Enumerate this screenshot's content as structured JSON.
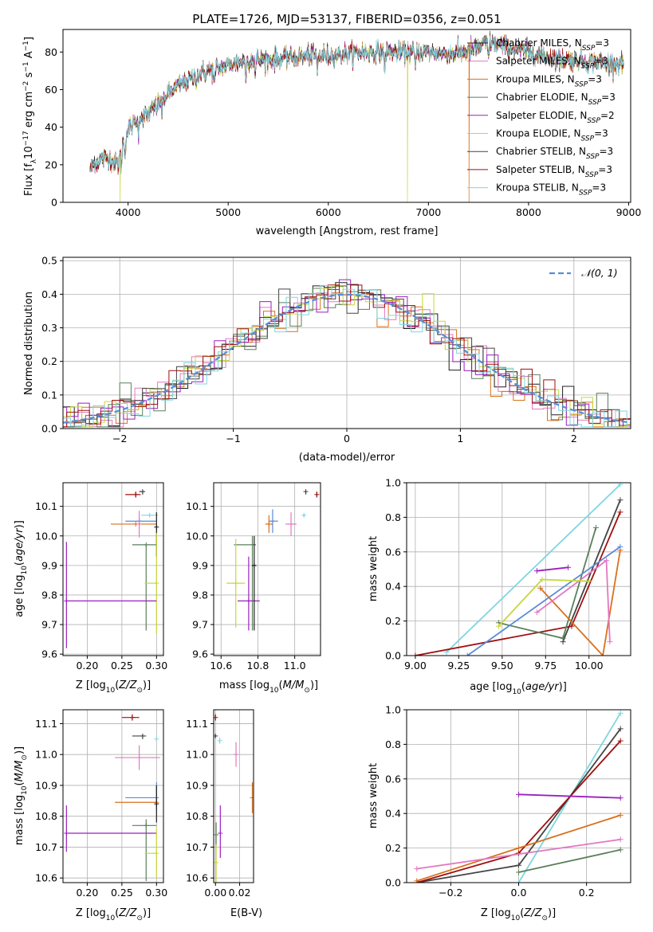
{
  "title": "PLATE=1726, MJD=53137, FIBERID=0356, z=0.051",
  "colors": {
    "chabrier_miles": "#1f1f1f",
    "salpeter_miles": "#e377c2",
    "kroupa_miles": "#d9701c",
    "chabrier_elodie": "#5a7f5a",
    "salpeter_elodie": "#9b1fbf",
    "kroupa_elodie": "#c8d63a",
    "chabrier_stelib": "#444444",
    "salpeter_stelib": "#a00f0f",
    "kroupa_stelib": "#7fd6e0",
    "blue_extra": "#5b8bd6",
    "grid": "#b0b0b0"
  },
  "chart_data": [
    {
      "id": "spectrum",
      "type": "line",
      "xlabel": "wavelength [Angstrom, rest frame]",
      "ylabel": "Flux [f_λ 10^-17 erg cm^-2 s^-1 A^-1]",
      "xlim": [
        3350,
        9020
      ],
      "ylim": [
        0,
        92
      ],
      "xticks": [
        4000,
        5000,
        6000,
        7000,
        8000,
        9000
      ],
      "yticks": [
        0,
        20,
        40,
        60,
        80
      ],
      "grid": false,
      "legend_position": "right",
      "series": [
        {
          "name": "Chabrier MILES, N_SSP=3",
          "color_key": "chabrier_miles"
        },
        {
          "name": "Salpeter MILES, N_SSP=3",
          "color_key": "salpeter_miles"
        },
        {
          "name": "Kroupa MILES, N_SSP=3",
          "color_key": "kroupa_miles"
        },
        {
          "name": "Chabrier ELODIE, N_SSP=3",
          "color_key": "chabrier_elodie"
        },
        {
          "name": "Salpeter ELODIE, N_SSP=2",
          "color_key": "salpeter_elodie"
        },
        {
          "name": "Kroupa ELODIE, N_SSP=3",
          "color_key": "kroupa_elodie"
        },
        {
          "name": "Chabrier STELIB, N_SSP=3",
          "color_key": "chabrier_stelib"
        },
        {
          "name": "Salpeter STELIB, N_SSP=3",
          "color_key": "salpeter_stelib"
        },
        {
          "name": "Kroupa STELIB, N_SSP=3",
          "color_key": "kroupa_stelib"
        }
      ],
      "continuum": {
        "x": [
          3620,
          3700,
          3800,
          3900,
          3950,
          4000,
          4100,
          4200,
          4300,
          4400,
          4500,
          4600,
          4800,
          5000,
          5200,
          5400,
          5600,
          5800,
          6000,
          6200,
          6400,
          6600,
          6800,
          7000,
          7200,
          7400,
          7600,
          7700,
          7800,
          8000,
          8200,
          8400,
          8600,
          8800,
          8950
        ],
        "y": [
          18,
          22,
          24,
          20,
          32,
          38,
          45,
          47,
          52,
          58,
          62,
          65,
          70,
          73,
          76,
          76,
          77,
          78,
          78,
          79,
          80,
          80,
          80,
          80,
          79,
          80,
          85,
          84,
          82,
          80,
          77,
          76,
          75,
          74,
          74
        ]
      },
      "drops": [
        {
          "x": 3920,
          "color_key": "kroupa_elodie"
        },
        {
          "x": 6790,
          "color_key": "kroupa_elodie"
        },
        {
          "x": 7405,
          "color_key": "kroupa_miles"
        }
      ]
    },
    {
      "id": "residuals",
      "type": "histogram",
      "xlabel": "(data-model)/error",
      "ylabel": "Normed distribution",
      "xlim": [
        -2.5,
        2.5
      ],
      "ylim": [
        0,
        0.51
      ],
      "xticks": [
        -2,
        -1,
        0,
        1,
        2
      ],
      "yticks": [
        0.0,
        0.1,
        0.2,
        0.3,
        0.4,
        0.5
      ],
      "grid": true,
      "legend_position": "top-right",
      "bin_width": 0.1,
      "reference": {
        "name": "N(0,1)",
        "color_key": "blue_extra"
      }
    },
    {
      "id": "age_vs_z",
      "type": "errorbar",
      "xlabel": "Z [log10(Z/Z⊙)]",
      "ylabel": "age [log10(age/yr)]",
      "xlim": [
        0.165,
        0.31
      ],
      "ylim": [
        9.595,
        10.18
      ],
      "xticks": [
        0.2,
        0.25,
        0.3
      ],
      "yticks": [
        9.6,
        9.7,
        9.8,
        9.9,
        10.0,
        10.1
      ],
      "grid": true,
      "points": [
        {
          "x": 0.27,
          "xerr": [
            0.015,
            0.007
          ],
          "y": 10.14,
          "yerr": [
            0.01,
            0.01
          ],
          "color_key": "salpeter_stelib"
        },
        {
          "x": 0.28,
          "xerr": [
            0.005,
            0.003
          ],
          "y": 10.15,
          "yerr": [
            0.01,
            0.005
          ],
          "color_key": "chabrier_stelib"
        },
        {
          "x": 0.29,
          "xerr": [
            0.012,
            0.012
          ],
          "y": 10.07,
          "yerr": [
            0.0,
            0.0
          ],
          "color_key": "kroupa_stelib"
        },
        {
          "x": 0.27,
          "xerr": [
            0.036,
            0.03
          ],
          "y": 10.04,
          "yerr": [
            0.0,
            0.0
          ],
          "color_key": "kroupa_miles"
        },
        {
          "x": 0.275,
          "xerr": [
            0.02,
            0.025
          ],
          "y": 10.05,
          "yerr": [
            0.01,
            0.01
          ],
          "color_key": "blue_extra"
        },
        {
          "x": 0.275,
          "xerr": [
            0.0,
            0.0
          ],
          "y": 10.04,
          "yerr": [
            0.045,
            0.045
          ],
          "color_key": "salpeter_miles"
        },
        {
          "x": 0.3,
          "xerr": [
            0.0,
            0.0
          ],
          "y": 10.03,
          "yerr": [
            0.1,
            0.05
          ],
          "color_key": "chabrier_miles"
        },
        {
          "x": 0.285,
          "xerr": [
            0.02,
            0.015
          ],
          "y": 9.97,
          "yerr": [
            0.29,
            0.0
          ],
          "color_key": "chabrier_elodie"
        },
        {
          "x": 0.3,
          "xerr": [
            0.017,
            0.0
          ],
          "y": 9.84,
          "yerr": [
            0.17,
            0.17
          ],
          "color_key": "kroupa_elodie"
        },
        {
          "x": 0.17,
          "xerr": [
            0.0,
            0.13
          ],
          "y": 9.78,
          "yerr": [
            0.16,
            0.2
          ],
          "color_key": "salpeter_elodie"
        }
      ]
    },
    {
      "id": "age_vs_mass",
      "type": "errorbar",
      "xlabel": "mass [log10(M/M⊙)]",
      "ylabel": "",
      "xlim": [
        10.56,
        11.14
      ],
      "ylim": [
        9.595,
        10.18
      ],
      "xticks": [
        10.6,
        10.8,
        11.0
      ],
      "yticks": [
        9.6,
        9.7,
        9.8,
        9.9,
        10.0,
        10.1
      ],
      "grid": true,
      "points": [
        {
          "x": 11.05,
          "xerr": [
            0.005,
            0.005
          ],
          "y": 10.07,
          "yerr": [
            0.005,
            0.005
          ],
          "color_key": "kroupa_stelib"
        },
        {
          "x": 11.06,
          "xerr": [
            0.005,
            0.005
          ],
          "y": 10.15,
          "yerr": [
            0.01,
            0.005
          ],
          "color_key": "chabrier_stelib"
        },
        {
          "x": 11.12,
          "xerr": [
            0.005,
            0.005
          ],
          "y": 10.14,
          "yerr": [
            0.01,
            0.01
          ],
          "color_key": "salpeter_stelib"
        },
        {
          "x": 10.88,
          "xerr": [
            0.02,
            0.03
          ],
          "y": 10.05,
          "yerr": [
            0.04,
            0.04
          ],
          "color_key": "blue_extra"
        },
        {
          "x": 10.86,
          "xerr": [
            0.02,
            0.02
          ],
          "y": 10.04,
          "yerr": [
            0.03,
            0.03
          ],
          "color_key": "kroupa_miles"
        },
        {
          "x": 10.98,
          "xerr": [
            0.03,
            0.03
          ],
          "y": 10.04,
          "yerr": [
            0.04,
            0.04
          ],
          "color_key": "salpeter_miles"
        },
        {
          "x": 10.77,
          "xerr": [
            0.1,
            0.02
          ],
          "y": 9.97,
          "yerr": [
            0.29,
            0.03
          ],
          "color_key": "chabrier_elodie"
        },
        {
          "x": 10.68,
          "xerr": [
            0.05,
            0.05
          ],
          "y": 9.84,
          "yerr": [
            0.15,
            0.15
          ],
          "color_key": "kroupa_elodie"
        },
        {
          "x": 10.75,
          "xerr": [
            0.06,
            0.06
          ],
          "y": 9.78,
          "yerr": [
            0.1,
            0.15
          ],
          "color_key": "salpeter_elodie"
        },
        {
          "x": 10.78,
          "xerr": [
            0.01,
            0.01
          ],
          "y": 9.9,
          "yerr": [
            0.22,
            0.1
          ],
          "color_key": "chabrier_miles"
        }
      ]
    },
    {
      "id": "weight_vs_age",
      "type": "line",
      "xlabel": "age [log10(age/yr)]",
      "ylabel": "mass weight",
      "xlim": [
        8.95,
        10.24
      ],
      "ylim": [
        0,
        1.0
      ],
      "xticks": [
        9.0,
        9.25,
        9.5,
        9.75,
        10.0
      ],
      "yticks": [
        0.0,
        0.2,
        0.4,
        0.6,
        0.8,
        1.0
      ],
      "grid": true,
      "series": [
        {
          "color_key": "kroupa_stelib",
          "x": [
            9.18,
            10.18
          ],
          "y": [
            0.02,
            0.99
          ]
        },
        {
          "color_key": "chabrier_stelib",
          "x": [
            9.85,
            10.18
          ],
          "y": [
            0.08,
            0.9
          ]
        },
        {
          "color_key": "salpeter_stelib",
          "x": [
            9.0,
            9.9,
            10.18
          ],
          "y": [
            0.0,
            0.17,
            0.83
          ]
        },
        {
          "color_key": "chabrier_elodie",
          "x": [
            9.48,
            9.85,
            10.04
          ],
          "y": [
            0.19,
            0.1,
            0.74
          ]
        },
        {
          "color_key": "kroupa_miles",
          "x": [
            9.72,
            10.08,
            10.18
          ],
          "y": [
            0.39,
            0.0,
            0.61
          ]
        },
        {
          "color_key": "blue_extra",
          "x": [
            9.3,
            10.18
          ],
          "y": [
            0.0,
            0.63
          ]
        },
        {
          "color_key": "salpeter_miles",
          "x": [
            9.7,
            10.1,
            10.12
          ],
          "y": [
            0.25,
            0.55,
            0.08
          ]
        },
        {
          "color_key": "salpeter_elodie",
          "x": [
            9.7,
            9.88
          ],
          "y": [
            0.49,
            0.51
          ]
        },
        {
          "color_key": "kroupa_elodie",
          "x": [
            9.48,
            9.73,
            10.0
          ],
          "y": [
            0.17,
            0.44,
            0.43
          ]
        }
      ]
    },
    {
      "id": "mass_vs_z",
      "type": "errorbar",
      "xlabel": "Z [log10(Z/Z⊙)]",
      "ylabel": "mass [log10(M/M⊙)]",
      "xlim": [
        0.165,
        0.31
      ],
      "ylim": [
        10.585,
        11.145
      ],
      "xticks": [
        0.2,
        0.25,
        0.3
      ],
      "yticks": [
        10.6,
        10.7,
        10.8,
        10.9,
        11.0,
        11.1
      ],
      "grid": true,
      "points": [
        {
          "x": 0.265,
          "xerr": [
            0.015,
            0.01
          ],
          "y": 11.12,
          "yerr": [
            0.01,
            0.01
          ],
          "color_key": "salpeter_stelib"
        },
        {
          "x": 0.28,
          "xerr": [
            0.015,
            0.005
          ],
          "y": 11.06,
          "yerr": [
            0.01,
            0.005
          ],
          "color_key": "chabrier_stelib"
        },
        {
          "x": 0.3,
          "xerr": [
            0.0,
            0.0
          ],
          "y": 11.05,
          "yerr": [
            0.0,
            0.0
          ],
          "color_key": "kroupa_stelib"
        },
        {
          "x": 0.275,
          "xerr": [
            0.035,
            0.03
          ],
          "y": 10.99,
          "yerr": [
            0.04,
            0.04
          ],
          "color_key": "salpeter_miles"
        },
        {
          "x": 0.3,
          "xerr": [
            0.045,
            0.0
          ],
          "y": 10.86,
          "yerr": [
            0.04,
            0.05
          ],
          "color_key": "blue_extra"
        },
        {
          "x": 0.3,
          "xerr": [
            0.06,
            0.0
          ],
          "y": 10.845,
          "yerr": [
            0.015,
            0.015
          ],
          "color_key": "kroupa_miles"
        },
        {
          "x": 0.3,
          "xerr": [
            0.0,
            0.0
          ],
          "y": 10.84,
          "yerr": [
            0.06,
            0.06
          ],
          "color_key": "chabrier_miles"
        },
        {
          "x": 0.285,
          "xerr": [
            0.02,
            0.015
          ],
          "y": 10.77,
          "yerr": [
            0.18,
            0.02
          ],
          "color_key": "chabrier_elodie"
        },
        {
          "x": 0.17,
          "xerr": [
            0.0,
            0.13
          ],
          "y": 10.745,
          "yerr": [
            0.06,
            0.09
          ],
          "color_key": "salpeter_elodie"
        },
        {
          "x": 0.3,
          "xerr": [
            0.017,
            0.0
          ],
          "y": 10.68,
          "yerr": [
            0.08,
            0.08
          ],
          "color_key": "kroupa_elodie"
        }
      ]
    },
    {
      "id": "mass_vs_ebv",
      "type": "errorbar",
      "xlabel": "E(B-V)",
      "ylabel": "",
      "xlim": [
        -0.0015,
        0.0315
      ],
      "ylim": [
        10.585,
        11.145
      ],
      "xticks": [
        0.0,
        0.02
      ],
      "yticks": [
        10.6,
        10.7,
        10.8,
        10.9,
        11.0,
        11.1
      ],
      "grid": true,
      "points": [
        {
          "x": 0.0,
          "xerr": [
            0.0,
            0.0
          ],
          "y": 11.12,
          "yerr": [
            0.01,
            0.01
          ],
          "color_key": "salpeter_stelib"
        },
        {
          "x": 0.0,
          "xerr": [
            0.0,
            0.0
          ],
          "y": 11.06,
          "yerr": [
            0.005,
            0.005
          ],
          "color_key": "chabrier_stelib"
        },
        {
          "x": 0.0035,
          "xerr": [
            0.0,
            0.0
          ],
          "y": 11.045,
          "yerr": [
            0.01,
            0.01
          ],
          "color_key": "kroupa_stelib"
        },
        {
          "x": 0.017,
          "xerr": [
            0.0,
            0.0
          ],
          "y": 11.0,
          "yerr": [
            0.04,
            0.04
          ],
          "color_key": "salpeter_miles"
        },
        {
          "x": 0.0305,
          "xerr": [
            0.0,
            0.0
          ],
          "y": 10.86,
          "yerr": [
            0.05,
            0.05
          ],
          "color_key": "kroupa_miles"
        },
        {
          "x": 0.0005,
          "xerr": [
            0.0,
            0.0
          ],
          "y": 10.74,
          "yerr": [
            0.04,
            0.04
          ],
          "color_key": "chabrier_elodie"
        },
        {
          "x": 0.004,
          "xerr": [
            0.0,
            0.0
          ],
          "y": 10.745,
          "yerr": [
            0.08,
            0.09
          ],
          "color_key": "salpeter_elodie"
        },
        {
          "x": 0.0005,
          "xerr": [
            0.0,
            0.0
          ],
          "y": 10.65,
          "yerr": [
            0.07,
            0.06
          ],
          "color_key": "kroupa_elodie"
        }
      ]
    },
    {
      "id": "weight_vs_z",
      "type": "line",
      "xlabel": "Z [log10(Z/Z⊙)]",
      "ylabel": "mass weight",
      "xlim": [
        -0.33,
        0.33
      ],
      "ylim": [
        0,
        1.0
      ],
      "xticks": [
        -0.2,
        0.0,
        0.2
      ],
      "yticks": [
        0.0,
        0.2,
        0.4,
        0.6,
        0.8,
        1.0
      ],
      "grid": true,
      "series": [
        {
          "color_key": "kroupa_stelib",
          "x": [
            0.0,
            0.3
          ],
          "y": [
            0.0,
            0.98
          ]
        },
        {
          "color_key": "chabrier_stelib",
          "x": [
            -0.3,
            0.0,
            0.3
          ],
          "y": [
            0.0,
            0.1,
            0.89
          ]
        },
        {
          "color_key": "salpeter_stelib",
          "x": [
            -0.3,
            0.0,
            0.3
          ],
          "y": [
            0.0,
            0.17,
            0.82
          ]
        },
        {
          "color_key": "salpeter_elodie",
          "x": [
            0.0,
            0.3
          ],
          "y": [
            0.51,
            0.49
          ]
        },
        {
          "color_key": "kroupa_miles",
          "x": [
            -0.3,
            0.0,
            0.3
          ],
          "y": [
            0.01,
            0.2,
            0.39
          ]
        },
        {
          "color_key": "salpeter_miles",
          "x": [
            -0.3,
            0.3
          ],
          "y": [
            0.08,
            0.25
          ]
        },
        {
          "color_key": "chabrier_elodie",
          "x": [
            0.0,
            0.3
          ],
          "y": [
            0.06,
            0.19
          ]
        }
      ]
    }
  ]
}
